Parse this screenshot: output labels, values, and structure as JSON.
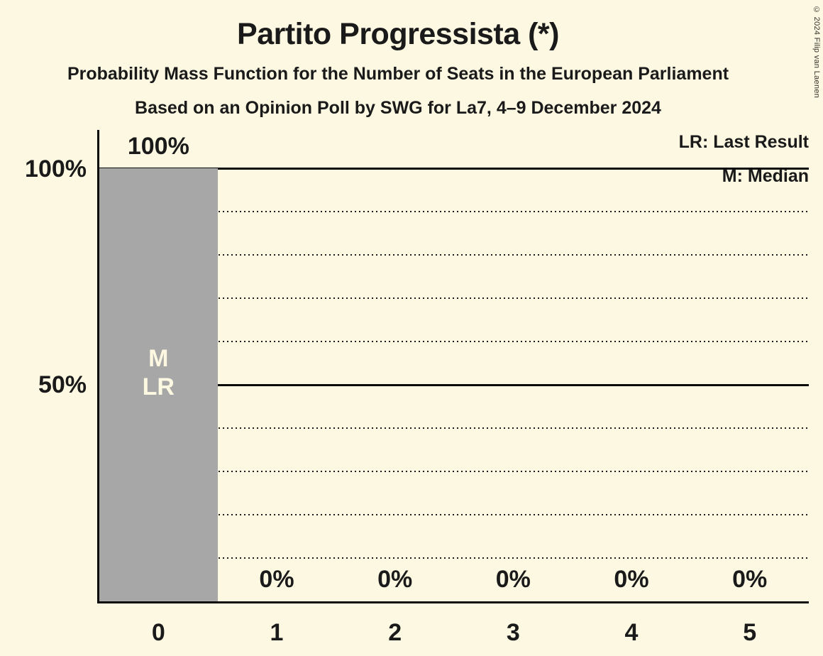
{
  "header": {
    "title": "Partito Progressista (*)",
    "subtitle": "Probability Mass Function for the Number of Seats in the European Parliament",
    "poll_details": "Based on an Opinion Poll by SWG for La7, 4–9 December 2024"
  },
  "copyright": "© 2024 Filip van Laenen",
  "legend": {
    "last_result": "LR: Last Result",
    "median": "M: Median"
  },
  "chart_data": {
    "type": "bar",
    "title": "Partito Progressista (*)",
    "categories": [
      "0",
      "1",
      "2",
      "3",
      "4",
      "5"
    ],
    "values": [
      100,
      0,
      0,
      0,
      0,
      0
    ],
    "value_labels": [
      "100%",
      "0%",
      "0%",
      "0%",
      "0%",
      "0%"
    ],
    "xlabel": "",
    "ylabel": "",
    "ylim": [
      0,
      100
    ],
    "y_axis_tick_labels": [
      {
        "pct": 100,
        "label": "100%"
      },
      {
        "pct": 50,
        "label": "50%"
      }
    ],
    "y_solid_gridlines_pct": [
      100,
      50
    ],
    "y_dotted_gridlines_pct": [
      90,
      80,
      70,
      60,
      40,
      30,
      20,
      10
    ],
    "bar_annotations": [
      {
        "category": "0",
        "lines": [
          "M",
          "LR"
        ]
      }
    ],
    "legend_position": "top-right",
    "grid": "horizontal-dotted-with-solid-50-100"
  },
  "colors": {
    "background": "#FDF8E1",
    "bar": "#A7A7A7",
    "text": "#1A1A1A",
    "axis": "#0B0B0B",
    "bar_marker_text": "#FDF8E1"
  }
}
